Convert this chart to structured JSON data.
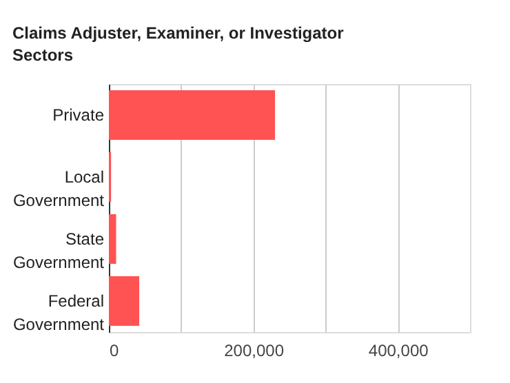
{
  "chart_data": {
    "type": "bar",
    "orientation": "horizontal",
    "title": "Claims Adjuster, Examiner, or Investigator Sectors",
    "categories": [
      "Private",
      "Local Government",
      "State Government",
      "Federal Government"
    ],
    "values": [
      230000,
      3000,
      10000,
      42000
    ],
    "color": "#ff5252",
    "xlim": [
      0,
      500000
    ],
    "xticks": [
      0,
      {
        "value": 100000,
        "label": null
      },
      {
        "value": 200000,
        "label": "200,000"
      },
      {
        "value": 300000,
        "label": null
      },
      {
        "value": 400000,
        "label": "400,000"
      }
    ],
    "grid": "x"
  }
}
